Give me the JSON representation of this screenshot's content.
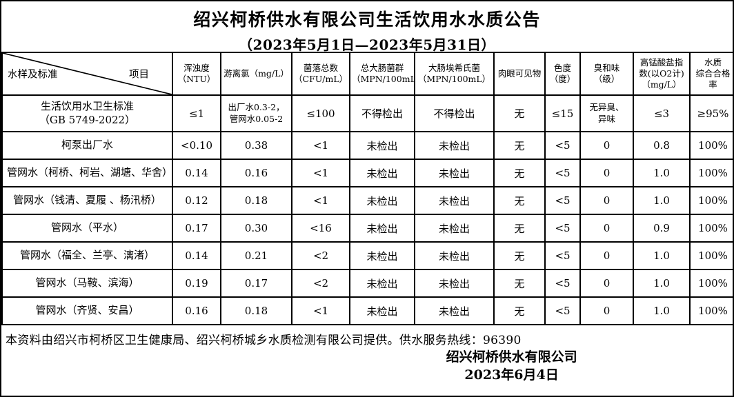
{
  "page": {
    "title": "绍兴柯桥供水有限公司生活饮用水水质公告",
    "subtitle": "（2023年5月1日—2023年5月31日）"
  },
  "table": {
    "corner": {
      "sample_label": "水样及标准",
      "item_label": "项目"
    },
    "column_headers": [
      "浑浊度\n（NTU）",
      "游离氯（mg/L）",
      "菌落总数\n（CFU/mL）",
      "总大肠菌群\n（MPN/100mL）",
      "大肠埃希氏菌\n（MPN/100mL）",
      "肉眼可见物",
      "色度\n（度）",
      "臭和味\n（级）",
      "高锰酸盐指\n数(以O2计)\n（mg/L）",
      "水质\n综合合格率"
    ],
    "rows": [
      {
        "label": "生活饮用水卫生标准\n（GB 5749-2022）",
        "values": [
          "≤1",
          "出厂水0.3-2，\n管网水0.05-2",
          "≤100",
          "不得检出",
          "不得检出",
          "无",
          "≤15",
          "无异臭、\n异味",
          "≤3",
          "≥95%"
        ]
      },
      {
        "label": "柯泵出厂水",
        "values": [
          "<0.10",
          "0.38",
          "<1",
          "未检出",
          "未检出",
          "无",
          "<5",
          "0",
          "0.8",
          "100%"
        ]
      },
      {
        "label": "管网水（柯桥、柯岩、湖塘、华舍）",
        "values": [
          "0.14",
          "0.16",
          "<1",
          "未检出",
          "未检出",
          "无",
          "<5",
          "0",
          "1.0",
          "100%"
        ]
      },
      {
        "label": "管网水（钱清、夏履 、杨汛桥）",
        "values": [
          "0.12",
          "0.18",
          "<1",
          "未检出",
          "未检出",
          "无",
          "<5",
          "0",
          "1.0",
          "100%"
        ]
      },
      {
        "label": "管网水（平水）",
        "values": [
          "0.17",
          "0.30",
          "<16",
          "未检出",
          "未检出",
          "无",
          "<5",
          "0",
          "0.9",
          "100%"
        ]
      },
      {
        "label": "管网水（福全、兰亭、漓渚）",
        "values": [
          "0.14",
          "0.21",
          "<2",
          "未检出",
          "未检出",
          "无",
          "<5",
          "0",
          "1.0",
          "100%"
        ]
      },
      {
        "label": "管网水（马鞍、滨海）",
        "values": [
          "0.19",
          "0.17",
          "<2",
          "未检出",
          "未检出",
          "无",
          "<5",
          "0",
          "1.0",
          "100%"
        ]
      },
      {
        "label": "管网水（齐贤、安昌）",
        "values": [
          "0.16",
          "0.18",
          "<1",
          "未检出",
          "未检出",
          "无",
          "<5",
          "0",
          "1.0",
          "100%"
        ]
      }
    ]
  },
  "footer": {
    "note": "本资料由绍兴市柯桥区卫生健康局、绍兴柯桥城乡水质检测有限公司提供。供水服务热线：96390",
    "company": "绍兴柯桥供水有限公司",
    "date": "2023年6月4日"
  }
}
